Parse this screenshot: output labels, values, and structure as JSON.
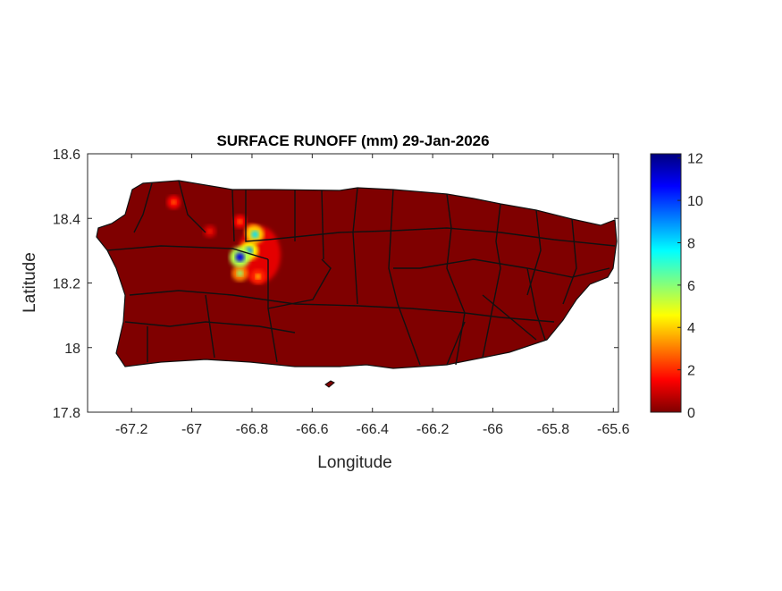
{
  "chart_data": {
    "type": "heatmap",
    "title": "SURFACE RUNOFF (mm) 29-Jan-2026",
    "xlabel": "Longitude",
    "ylabel": "Latitude",
    "xlim": [
      -67.346,
      -65.583
    ],
    "ylim": [
      17.8,
      18.6
    ],
    "xticks": [
      -67.2,
      -67,
      -66.8,
      -66.6,
      -66.4,
      -66.2,
      -66,
      -65.8,
      -65.6
    ],
    "xtick_labels": [
      "-67.2",
      "-67",
      "-66.8",
      "-66.6",
      "-66.4",
      "-66.2",
      "-66",
      "-65.8",
      "-65.6"
    ],
    "yticks": [
      17.8,
      18,
      18.2,
      18.4,
      18.6
    ],
    "ytick_labels": [
      "17.8",
      "18",
      "18.2",
      "18.4",
      "18.6"
    ],
    "colormap": "jet (reversed: 0 dark red, max dark blue)",
    "colorbar": {
      "range": [
        0,
        12.2
      ],
      "ticks": [
        0,
        2,
        4,
        6,
        8,
        10,
        12
      ],
      "tick_labels": [
        "0",
        "2",
        "4",
        "6",
        "8",
        "10",
        "12"
      ]
    },
    "background_value": 0,
    "hotspots": [
      {
        "lon": -66.84,
        "lat": 18.28,
        "value": 11
      },
      {
        "lon": -66.81,
        "lat": 18.3,
        "value": 9
      },
      {
        "lon": -66.79,
        "lat": 18.35,
        "value": 8
      },
      {
        "lon": -66.84,
        "lat": 18.23,
        "value": 6
      },
      {
        "lon": -66.8,
        "lat": 18.36,
        "value": 5
      },
      {
        "lon": -66.78,
        "lat": 18.22,
        "value": 4
      },
      {
        "lon": -66.84,
        "lat": 18.39,
        "value": 3
      },
      {
        "lon": -67.06,
        "lat": 18.45,
        "value": 3
      },
      {
        "lon": -66.94,
        "lat": 18.36,
        "value": 2
      }
    ],
    "grid": false
  }
}
